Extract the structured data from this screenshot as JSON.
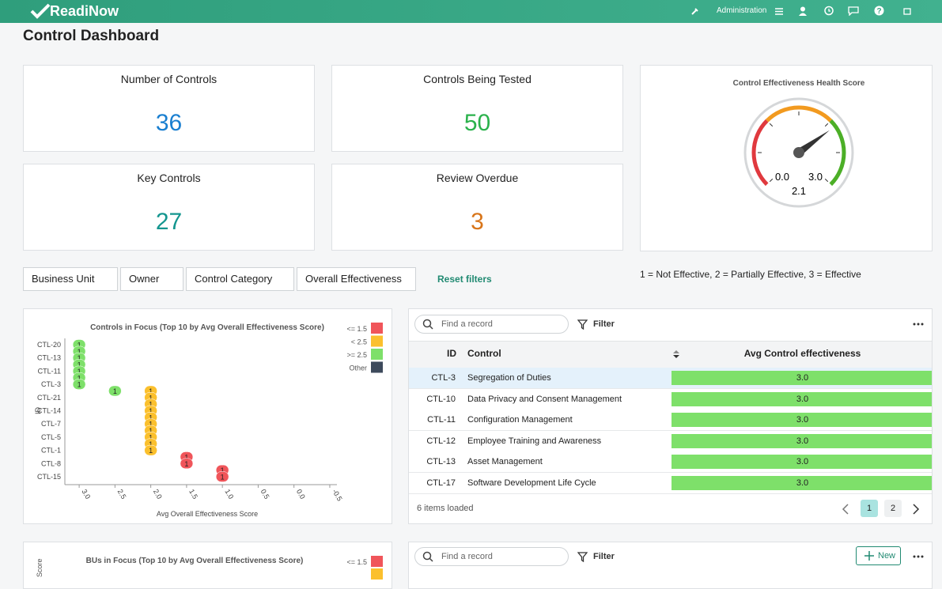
{
  "header": {
    "brand": "ReadiNow",
    "nav": "Administration"
  },
  "page_title": "Control Dashboard",
  "kpis": [
    {
      "label": "Number of Controls",
      "value": 36,
      "color": "#1a7fd0"
    },
    {
      "label": "Controls Being Tested",
      "value": 50,
      "color": "#2bb24c"
    },
    {
      "label": "Key Controls",
      "value": 27,
      "color": "#14968f"
    },
    {
      "label": "Review Overdue",
      "value": 3,
      "color": "#d8751a"
    }
  ],
  "gauge": {
    "title": "Control Effectiveness Health Score",
    "min": {
      "value": 0,
      "label": "0.0"
    },
    "max": {
      "value": 3,
      "label": "3.0"
    },
    "value": 2.1,
    "bands": [
      {
        "from": 0,
        "to": 1,
        "color": "#e0393e"
      },
      {
        "from": 1,
        "to": 2,
        "color": "#f29a1f"
      },
      {
        "from": 2,
        "to": 3,
        "color": "#4caf27"
      }
    ]
  },
  "note": "1 = Not Effective, 2 = Partially Effective, 3 = Effective",
  "filters": [
    "Business Unit",
    "Owner",
    "Control Category",
    "Overall Effectiveness"
  ],
  "reset": "Reset filters",
  "scatter": {
    "type": "scatter",
    "title": "Controls in Focus (Top 10 by Avg Overall Effectiveness Score)",
    "x_label": "Avg Overall Effectiveness Score",
    "y_label": "ID",
    "categories": [
      "CTL-20",
      null,
      "CTL-13",
      null,
      "CTL-11",
      null,
      "CTL-3",
      null,
      "CTL-21",
      null,
      "CTL-14",
      null,
      "CTL-7",
      null,
      "CTL-5",
      null,
      "CTL-1",
      null,
      "CTL-8",
      null,
      "CTL-15"
    ],
    "xlim": [
      3.2,
      -0.6
    ],
    "xticks": [
      {
        "value": 3,
        "label": "3.0"
      },
      {
        "value": 2.5,
        "label": "2.5"
      },
      {
        "value": 2,
        "label": "2.0"
      },
      {
        "value": 1.5,
        "label": "1.5"
      },
      {
        "value": 1,
        "label": "1.0"
      },
      {
        "value": 0.5,
        "label": "0.5"
      },
      {
        "value": 0,
        "label": "0.0"
      },
      {
        "value": -0.5,
        "label": "-0.5"
      }
    ],
    "series": [
      {
        "name": "<= 1.5",
        "color": "#f0555a",
        "x": [
          1.5,
          1.5,
          1,
          1
        ],
        "y": [
          17,
          18,
          19,
          20
        ],
        "values": [
          1,
          1,
          1,
          1
        ]
      },
      {
        "name": "< 2.5",
        "color": "#fbc02d",
        "x": [
          2,
          2,
          2,
          2,
          2,
          2,
          2,
          2,
          2,
          2
        ],
        "y": [
          7,
          8,
          9,
          10,
          11,
          12,
          13,
          14,
          15,
          16
        ],
        "values": [
          1,
          1,
          1,
          1,
          1,
          1,
          1,
          1,
          1,
          1
        ]
      },
      {
        "name": ">= 2.5",
        "color": "#7ee06a",
        "x": [
          3,
          3,
          3,
          3,
          3,
          3,
          3,
          2.5
        ],
        "y": [
          0,
          1,
          2,
          3,
          4,
          5,
          6,
          7
        ],
        "values": [
          1,
          1,
          1,
          1,
          1,
          1,
          1,
          1
        ]
      },
      {
        "name": "Other",
        "color": "#3d4a5c",
        "x": [],
        "y": [],
        "values": []
      }
    ]
  },
  "table": {
    "search": "Find a record",
    "filter": "Filter",
    "columns": [
      "ID",
      "Control",
      "Avg Control effectiveness"
    ],
    "rows": [
      [
        "CTL-3",
        "Segregation of Duties",
        "3.0"
      ],
      [
        "CTL-10",
        "Data Privacy and Consent Management",
        "3.0"
      ],
      [
        "CTL-11",
        "Configuration Management",
        "3.0"
      ],
      [
        "CTL-12",
        "Employee Training and Awareness",
        "3.0"
      ],
      [
        "CTL-13",
        "Asset Management",
        "3.0"
      ],
      [
        "CTL-17",
        "Software Development Life Cycle",
        "3.0"
      ]
    ],
    "footer": "6 items loaded",
    "pages": [
      "1",
      "2"
    ]
  },
  "bottom_chart": {
    "title": "BUs in Focus (Top 10 by Avg Overall Effectiveness Score)",
    "y_label": "Score",
    "legend": [
      "<= 1.5"
    ]
  },
  "bottom_table": {
    "search": "Find a record",
    "filter": "Filter",
    "new": "New"
  }
}
